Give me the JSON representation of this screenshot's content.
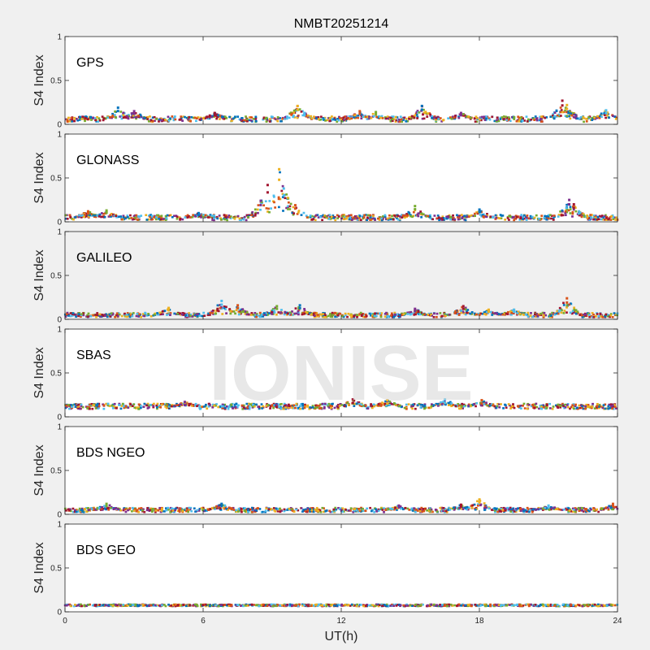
{
  "chart_data": {
    "type": "scatter",
    "title": "NMBT20251214",
    "xlabel": "UT(h)",
    "ylabel": "S4 Index",
    "xlim": [
      0,
      24
    ],
    "ylim": [
      0,
      1
    ],
    "xticks": [
      0,
      6,
      12,
      18,
      24
    ],
    "yticks": [
      0,
      0.5,
      1
    ],
    "watermark": "IONISE",
    "colors": [
      "#0072BD",
      "#D95319",
      "#EDB120",
      "#7E2F8E",
      "#77AC30",
      "#4DBEEE",
      "#A2142F"
    ],
    "panels": [
      {
        "label": "GPS",
        "background": "#ffffff",
        "baseline": 0.06,
        "spread": 0.03,
        "peaks": [
          [
            2.3,
            0.19
          ],
          [
            3.0,
            0.15
          ],
          [
            6.5,
            0.13
          ],
          [
            10.1,
            0.21
          ],
          [
            10.4,
            0.13
          ],
          [
            12.8,
            0.15
          ],
          [
            13.5,
            0.14
          ],
          [
            15.5,
            0.21
          ],
          [
            17.2,
            0.13
          ],
          [
            21.6,
            0.27
          ],
          [
            21.8,
            0.22
          ],
          [
            23.5,
            0.16
          ]
        ]
      },
      {
        "label": "GLONASS",
        "background": "#ffffff",
        "baseline": 0.05,
        "spread": 0.03,
        "peaks": [
          [
            1.0,
            0.12
          ],
          [
            1.8,
            0.13
          ],
          [
            5.8,
            0.1
          ],
          [
            8.5,
            0.24
          ],
          [
            8.8,
            0.42
          ],
          [
            9.3,
            0.6
          ],
          [
            9.5,
            0.38
          ],
          [
            10.0,
            0.19
          ],
          [
            15.2,
            0.18
          ],
          [
            18.0,
            0.14
          ],
          [
            21.9,
            0.25
          ],
          [
            22.1,
            0.2
          ]
        ]
      },
      {
        "label": "GALILEO",
        "background": "#f0f0f0",
        "baseline": 0.05,
        "spread": 0.025,
        "peaks": [
          [
            4.5,
            0.13
          ],
          [
            6.8,
            0.21
          ],
          [
            7.5,
            0.16
          ],
          [
            9.2,
            0.15
          ],
          [
            10.2,
            0.16
          ],
          [
            15.2,
            0.12
          ],
          [
            17.3,
            0.15
          ],
          [
            18.4,
            0.11
          ],
          [
            19.5,
            0.11
          ],
          [
            21.8,
            0.24
          ]
        ]
      },
      {
        "label": "SBAS",
        "background": "#ffffff",
        "baseline": 0.12,
        "spread": 0.03,
        "peaks": [
          [
            5.2,
            0.17
          ],
          [
            12.5,
            0.2
          ],
          [
            14.0,
            0.19
          ],
          [
            16.5,
            0.2
          ],
          [
            18.1,
            0.19
          ]
        ]
      },
      {
        "label": "BDS NGEO",
        "background": "#ffffff",
        "baseline": 0.05,
        "spread": 0.025,
        "peaks": [
          [
            1.8,
            0.12
          ],
          [
            6.8,
            0.12
          ],
          [
            14.5,
            0.1
          ],
          [
            17.2,
            0.11
          ],
          [
            18.0,
            0.17
          ],
          [
            21.0,
            0.1
          ],
          [
            23.8,
            0.12
          ]
        ]
      },
      {
        "label": "BDS GEO",
        "background": "#ffffff",
        "baseline": 0.075,
        "spread": 0.01,
        "peaks": []
      }
    ]
  }
}
